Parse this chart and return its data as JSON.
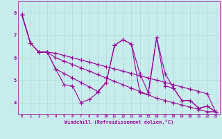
{
  "xlabel": "Windchill (Refroidissement éolien,°C)",
  "ylabel": "",
  "bg_color": "#c8ecec",
  "line_color": "#990099",
  "marker": "+",
  "markersize": 4,
  "linewidth": 0.8,
  "grid_color": "#aadddd",
  "xlim": [
    -0.5,
    23.5
  ],
  "ylim": [
    3.5,
    8.5
  ],
  "xticks": [
    0,
    1,
    2,
    3,
    4,
    5,
    6,
    7,
    8,
    9,
    10,
    11,
    12,
    13,
    14,
    15,
    16,
    17,
    18,
    19,
    20,
    21,
    22,
    23
  ],
  "yticks": [
    4,
    5,
    6,
    7,
    8
  ],
  "series": [
    [
      7.9,
      6.65,
      6.25,
      6.25,
      5.5,
      4.8,
      4.75,
      4.0,
      4.15,
      4.45,
      4.9,
      6.55,
      6.8,
      6.6,
      4.45,
      4.35,
      6.9,
      4.75,
      4.65,
      4.1,
      4.1,
      3.75,
      3.85,
      3.6
    ],
    [
      7.9,
      6.65,
      6.25,
      6.25,
      6.0,
      5.85,
      5.7,
      5.55,
      5.4,
      5.25,
      5.1,
      4.95,
      4.8,
      4.65,
      4.5,
      4.35,
      4.2,
      4.1,
      4.0,
      3.9,
      3.8,
      3.7,
      3.6,
      3.6
    ],
    [
      7.9,
      6.65,
      6.25,
      6.25,
      6.2,
      6.1,
      6.0,
      5.9,
      5.8,
      5.7,
      5.6,
      5.5,
      5.4,
      5.3,
      5.2,
      5.1,
      5.0,
      4.9,
      4.8,
      4.7,
      4.6,
      4.5,
      4.4,
      3.6
    ],
    [
      7.9,
      6.65,
      6.25,
      6.25,
      5.5,
      5.3,
      5.1,
      4.9,
      4.7,
      4.5,
      4.9,
      6.55,
      6.8,
      6.6,
      5.3,
      4.45,
      6.9,
      5.3,
      4.65,
      4.1,
      4.1,
      3.75,
      3.85,
      3.6
    ]
  ]
}
